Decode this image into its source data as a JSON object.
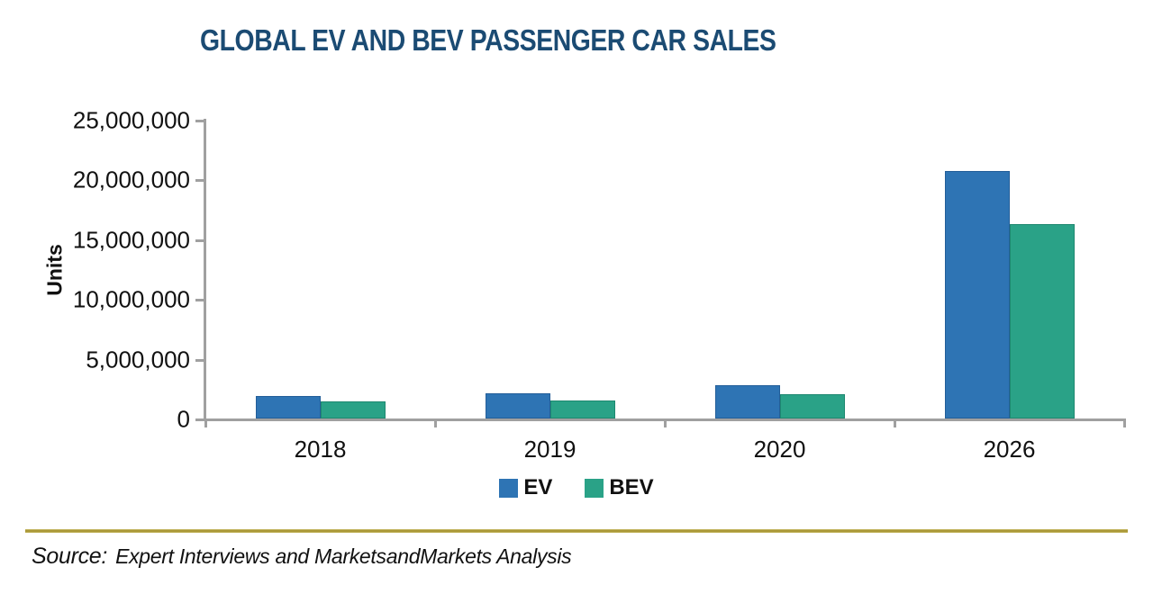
{
  "title": "GLOBAL EV AND BEV PASSENGER CAR SALES",
  "chart_data": {
    "type": "bar",
    "categories": [
      "2018",
      "2019",
      "2020",
      "2026"
    ],
    "series": [
      {
        "name": "EV",
        "color": "#2E74B4",
        "border_color": "#235E99",
        "values": [
          1900000,
          2100000,
          2800000,
          20700000
        ]
      },
      {
        "name": "BEV",
        "color": "#2AA287",
        "border_color": "#1E8870",
        "values": [
          1400000,
          1500000,
          2000000,
          16300000
        ]
      }
    ],
    "title": "GLOBAL EV AND BEV PASSENGER CAR SALES",
    "xlabel": "",
    "ylabel": "Units",
    "ylim": [
      0,
      25000000
    ],
    "y_ticks": [
      0,
      5000000,
      10000000,
      15000000,
      20000000,
      25000000
    ],
    "y_tick_labels": [
      "0",
      "5,000,000",
      "10,000,000",
      "15,000,000",
      "20,000,000",
      "25,000,000"
    ],
    "grid": false,
    "legend_position": "bottom-center"
  },
  "legend": {
    "items": [
      {
        "label": "EV",
        "color": "#2E74B4"
      },
      {
        "label": "BEV",
        "color": "#2AA287"
      }
    ]
  },
  "source": {
    "prefix": "Source:",
    "text": "Expert Interviews and MarketsandMarkets Analysis"
  },
  "colors": {
    "title_text": "#1B4B73",
    "axis": "#A0A0A0",
    "gold_rule": "#A99334",
    "ev_bar": "#2E74B4",
    "bev_bar": "#2AA287"
  }
}
